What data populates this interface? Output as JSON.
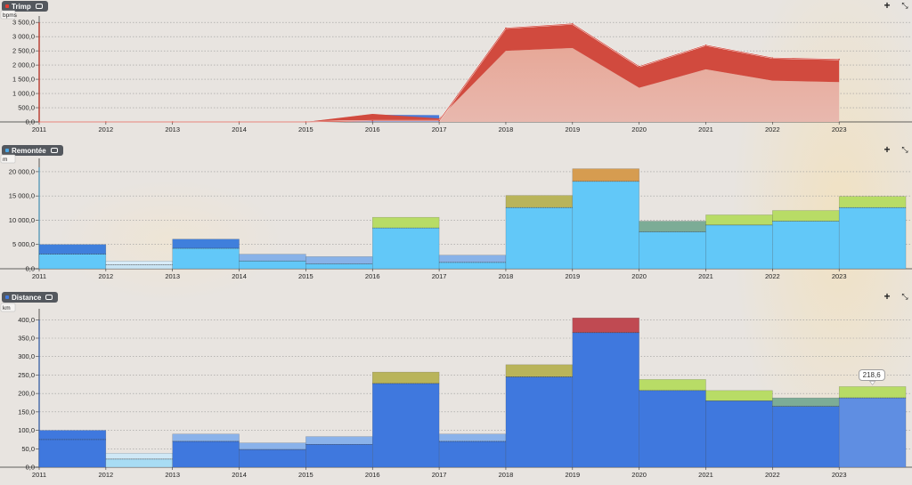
{
  "colors": {
    "background": "#e8e4e0",
    "grid": "#9a9a9a",
    "axis": "#333333",
    "trimp_red": "#d14a3e",
    "trimp_fill_light": "#e8a79b",
    "trimp_blue": "#4a7ad8",
    "remontee_base": "#62c8f8",
    "remontee_2012": "#c8e4f4",
    "remontee_dark": "#3f7fdc",
    "remontee_light": "#88b2e8",
    "top_olive": "#b9b45a",
    "top_orange": "#d69c50",
    "top_teal": "#7cac96",
    "top_lime": "#b8dc66",
    "distance_base": "#3f78de",
    "distance_light": "#8ab2ea",
    "distance_2012": "#a8dcf4",
    "distance_2023": "#5f8ee2",
    "top_red": "#c04a52"
  },
  "panels": [
    {
      "id": "trimp",
      "title": "Trimp",
      "title_dot_color": "#e83c30",
      "unit": "bpms",
      "icons": {
        "add": "plus-icon",
        "expand": "expand-icon",
        "comment": "comment-icon"
      }
    },
    {
      "id": "remontee",
      "title": "Remontée",
      "title_dot_color": "#4aa8e8",
      "unit": "m",
      "icons": {
        "add": "plus-icon",
        "expand": "expand-icon",
        "comment": "comment-icon"
      }
    },
    {
      "id": "distance",
      "title": "Distance",
      "title_dot_color": "#3f78de",
      "unit": "km",
      "icons": {
        "add": "plus-icon",
        "expand": "expand-icon",
        "comment": "comment-icon"
      }
    }
  ],
  "chart_data": [
    {
      "type": "area",
      "title": "Trimp",
      "ylabel": "bpms",
      "x_ticks": [
        "2011",
        "2012",
        "2013",
        "2014",
        "2015",
        "2016",
        "2017",
        "2018",
        "2019",
        "2020",
        "2021",
        "2022",
        "2023"
      ],
      "y_ticks": [
        "0,0",
        "500,0",
        "1 000,0",
        "1 500,0",
        "2 000,0",
        "2 500,0",
        "3 000,0",
        "3 500,0"
      ],
      "ylim": [
        0,
        3600
      ],
      "grid": true,
      "series": [
        {
          "values": [
            0,
            0,
            0,
            0,
            0,
            280,
            120,
            2500,
            2600,
            1200,
            1850,
            1450,
            1400
          ]
        },
        {
          "values": [
            0,
            0,
            0,
            0,
            0,
            40,
            40,
            3300,
            3450,
            1950,
            2700,
            2250,
            2200
          ]
        }
      ],
      "inner_blue_area": {
        "x": [
          "2015",
          "2016",
          "2017"
        ],
        "values": [
          0,
          250,
          240
        ]
      }
    },
    {
      "type": "bar",
      "title": "Remontée",
      "ylabel": "m",
      "x_ticks": [
        "2011",
        "2012",
        "2013",
        "2014",
        "2015",
        "2016",
        "2017",
        "2018",
        "2019",
        "2020",
        "2021",
        "2022",
        "2023"
      ],
      "y_ticks": [
        "0,0",
        "5 000,0",
        "10 000,0",
        "15 000,0",
        "20 000,0"
      ],
      "ylim": [
        0,
        22000
      ],
      "grid": true,
      "bars": [
        {
          "year": "2011",
          "base": 3000,
          "total": 5000
        },
        {
          "year": "2012",
          "base": 800,
          "total": 1600
        },
        {
          "year": "2013",
          "base": 4200,
          "total": 6100
        },
        {
          "year": "2014",
          "base": 1600,
          "total": 3000
        },
        {
          "year": "2015",
          "base": 1000,
          "total": 2500
        },
        {
          "year": "2016",
          "base": 8400,
          "total": 10600
        },
        {
          "year": "2017",
          "base": 1300,
          "total": 2800
        },
        {
          "year": "2018",
          "base": 12600,
          "total": 15100
        },
        {
          "year": "2019",
          "base": 18000,
          "total": 20600
        },
        {
          "year": "2020",
          "base": 7600,
          "total": 9800
        },
        {
          "year": "2021",
          "base": 9000,
          "total": 11100
        },
        {
          "year": "2022",
          "base": 9800,
          "total": 12000
        },
        {
          "year": "2023",
          "base": 12600,
          "total": 14900
        }
      ]
    },
    {
      "type": "bar",
      "title": "Distance",
      "ylabel": "km",
      "x_ticks": [
        "2011",
        "2012",
        "2013",
        "2014",
        "2015",
        "2016",
        "2017",
        "2018",
        "2019",
        "2020",
        "2021",
        "2022",
        "2023"
      ],
      "y_ticks": [
        "0,0",
        "50,0",
        "100,0",
        "150,0",
        "200,0",
        "250,0",
        "300,0",
        "350,0",
        "400,0"
      ],
      "ylim": [
        0,
        420
      ],
      "grid": true,
      "bars": [
        {
          "year": "2011",
          "base": 75,
          "total": 100
        },
        {
          "year": "2012",
          "base": 22,
          "total": 38
        },
        {
          "year": "2013",
          "base": 70,
          "total": 90
        },
        {
          "year": "2014",
          "base": 48,
          "total": 66
        },
        {
          "year": "2015",
          "base": 62,
          "total": 83
        },
        {
          "year": "2016",
          "base": 227,
          "total": 258
        },
        {
          "year": "2017",
          "base": 70,
          "total": 90
        },
        {
          "year": "2018",
          "base": 245,
          "total": 278
        },
        {
          "year": "2019",
          "base": 365,
          "total": 405
        },
        {
          "year": "2020",
          "base": 208,
          "total": 238
        },
        {
          "year": "2021",
          "base": 180,
          "total": 208
        },
        {
          "year": "2022",
          "base": 165,
          "total": 188
        },
        {
          "year": "2023",
          "base": 188,
          "total": 218.6
        }
      ],
      "callout": {
        "year": "2023",
        "label": "218,6"
      }
    }
  ]
}
